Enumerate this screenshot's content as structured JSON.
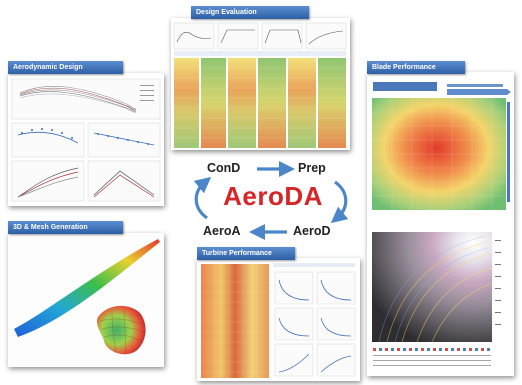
{
  "panels": {
    "aero_design": "Aerodynamic Design",
    "design_eval": "Design Evaluation",
    "blade_perf": "Blade Performance",
    "mesh_gen": "3D & Mesh Generation",
    "turbine_perf": "Turbine Performance"
  },
  "cycle": {
    "brand": "AeroDA",
    "steps": {
      "cond": "ConD",
      "prep": "Prep",
      "aerod": "AeroD",
      "aeroa": "AeroA"
    }
  },
  "colors": {
    "title_bar": "#2d5fa6",
    "brand": "#d62628",
    "cycle_arrow": "#4b86c9"
  }
}
